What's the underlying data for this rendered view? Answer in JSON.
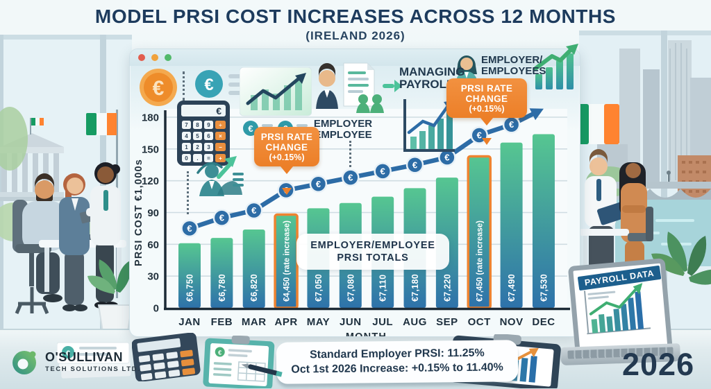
{
  "title": "MODEL PRSI COST INCREASES ACROSS 12 MONTHS",
  "subtitle": "(IRELAND 2026)",
  "symbols": {
    "euro": "€"
  },
  "window_chrome": {
    "dot_colors": [
      "#e25d4e",
      "#f0a23c",
      "#52b96a"
    ]
  },
  "header": {
    "employer_employee_label": "EMPLOYER\nEMPLOYEE",
    "managing_payroll_label": "MANAGING\nPAYROLL",
    "employer_employees_label": "EMPLOYER/\nEMPLOYEES",
    "calculator_display": "€",
    "calculator_keys": [
      "7",
      "8",
      "9",
      "4",
      "5",
      "6",
      "1",
      "2",
      "3",
      "0",
      ".",
      "="
    ],
    "calculator_ops": [
      "÷",
      "×",
      "−",
      "+"
    ]
  },
  "rate_callout": {
    "line1": "PRSI RATE",
    "line2": "CHANGE",
    "line3": "(+0.15%)"
  },
  "chart_data": {
    "type": "bar",
    "overlay": "line-with-euro-markers-and-arrow",
    "title": "EMPLOYER/EMPLOYEE PRSI TOTALS",
    "title_lines": "EMPLOYER/EMPLOYEE\nPRSI TOTALS",
    "xlabel": "MONTH",
    "ylabel": "PRSI COST €1,000s",
    "ylim": [
      0,
      180
    ],
    "yticks": [
      0,
      30,
      60,
      90,
      120,
      150,
      180
    ],
    "grid": true,
    "legend": "none",
    "categories": [
      "JAN",
      "FEB",
      "MAR",
      "APR",
      "MAY",
      "JUN",
      "JUL",
      "AUG",
      "SEP",
      "OCT",
      "NOV",
      "DEC"
    ],
    "series": [
      {
        "name": "Employer/Employee PRSI totals (€)",
        "values": [
          6750,
          6780,
          6820,
          4450,
          7050,
          7080,
          7110,
          7180,
          7220,
          7450,
          7490,
          7530
        ]
      }
    ],
    "bar_labels": [
      "€6,750",
      "€6,780",
      "€6,820",
      "€4,450 (rate increase)",
      "€7,050",
      "€7,080",
      "€7,110",
      "€7,180",
      "€7,220",
      "€7,450 (rate increase)",
      "€7,490",
      "€7,530"
    ],
    "highlight_indices": [
      3,
      9
    ],
    "annotations": [
      {
        "text": "PRSI RATE CHANGE (+0.15%)",
        "target": "APR"
      },
      {
        "text": "PRSI RATE CHANGE (+0.15%)",
        "target": "OCT"
      }
    ],
    "bar_drawn_tops_axis_units": [
      61,
      66,
      74,
      88,
      94,
      99,
      105,
      113,
      123,
      143,
      156,
      164
    ],
    "trend_line_axis_units": [
      75,
      85,
      92,
      111,
      117,
      123,
      129,
      135,
      142,
      163,
      173,
      188
    ]
  },
  "footnote": {
    "line1": "Standard Employer PRSI: 11.25%",
    "line2": "Oct 1st 2026 Increase: +0.15% to 11.40%"
  },
  "laptop": {
    "screen_label": "PAYROLL DATA"
  },
  "branding": {
    "company": "O'SULLIVAN",
    "tagline": "TECH SOLUTIONS LTD.",
    "year": "2026"
  },
  "colors": {
    "accent_orange": "#ee8330",
    "bar_top": "#56c691",
    "bar_bottom": "#2e72aa",
    "line_blue": "#2d6ca6",
    "title_navy": "#1d3b5d",
    "flag_green": "#169b62",
    "flag_orange": "#ff8330"
  }
}
